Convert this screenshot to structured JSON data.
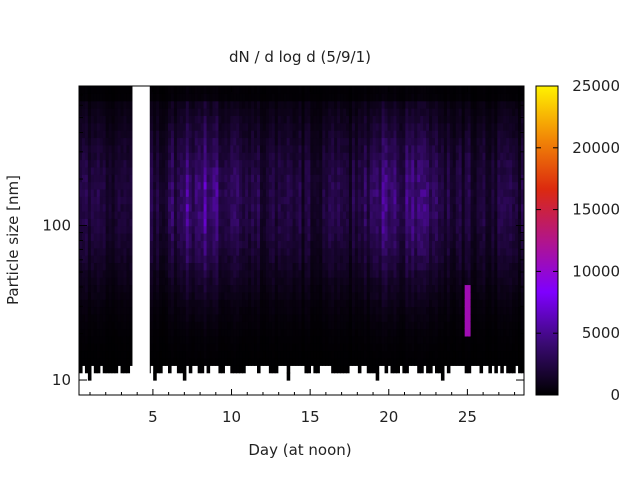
{
  "chart_data": {
    "type": "heatmap",
    "title": "dN / d log d (5/9/1)",
    "xlabel": "Day (at noon)",
    "ylabel": "Particle size [nm]",
    "x_range": [
      0.3,
      28.6
    ],
    "x_ticks": [
      5,
      10,
      15,
      20,
      25
    ],
    "y_scale": "log",
    "y_range": [
      8,
      800
    ],
    "y_ticks": [
      10,
      100
    ],
    "y_tick_labels": [
      "10",
      "100"
    ],
    "colorbar": {
      "range": [
        0,
        25000
      ],
      "ticks": [
        0,
        5000,
        10000,
        15000,
        20000,
        25000
      ],
      "tick_labels": [
        "0",
        "5000",
        "10000",
        "15000",
        "20000",
        "25000"
      ],
      "colormap": [
        "#000000",
        "#3a0a73",
        "#7f00ff",
        "#b2158a",
        "#dc2a0f",
        "#f28a06",
        "#fff200"
      ]
    },
    "gaps_days": [
      [
        3.7,
        4.8
      ]
    ],
    "size_range_nm": [
      10,
      800
    ],
    "peak_concentration_days": [
      8.0,
      20.7
    ],
    "peak_concentration_size_nm": 150,
    "max_concentration_approx": 6500,
    "notable_event": {
      "day": 25.0,
      "size_nm": [
        20,
        40
      ],
      "value_approx": 11000
    },
    "grid": false
  }
}
